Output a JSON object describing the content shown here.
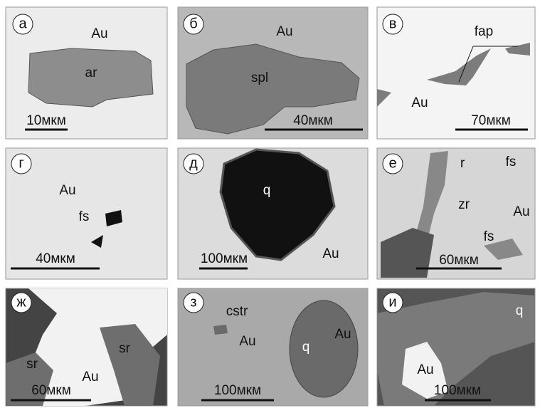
{
  "panels": [
    {
      "letter": "а",
      "labels": [
        "Au",
        "ar"
      ],
      "scale": "10мкм"
    },
    {
      "letter": "б",
      "labels": [
        "Au",
        "spl"
      ],
      "scale": "40мкм"
    },
    {
      "letter": "в",
      "labels": [
        "fap",
        "Au"
      ],
      "scale": "70мкм"
    },
    {
      "letter": "г",
      "labels": [
        "Au",
        "fs"
      ],
      "scale": "40мкм"
    },
    {
      "letter": "д",
      "labels": [
        "q",
        "Au"
      ],
      "scale": "100мкм"
    },
    {
      "letter": "е",
      "labels": [
        "r",
        "fs",
        "zr",
        "Au",
        "fs"
      ],
      "scale": "60мкм"
    },
    {
      "letter": "ж",
      "labels": [
        "sr",
        "sr",
        "Au"
      ],
      "scale": "60мкм"
    },
    {
      "letter": "з",
      "labels": [
        "cstr",
        "Au",
        "q",
        "Au"
      ],
      "scale": "100мкм"
    },
    {
      "letter": "и",
      "labels": [
        "q",
        "Au"
      ],
      "scale": "100мкм"
    }
  ]
}
